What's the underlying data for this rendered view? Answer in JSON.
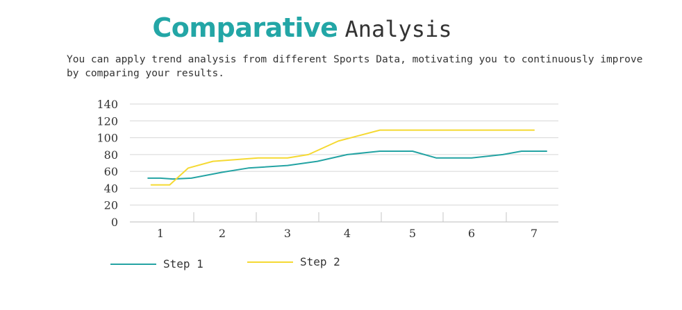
{
  "title": {
    "bold": "Comparative",
    "light": "Analysis"
  },
  "subtitle": "You can apply trend analysis from different Sports Data, motivating you to continuously improve by comparing your results.",
  "chart_data": {
    "type": "line",
    "title": "",
    "xlabel": "",
    "ylabel": "",
    "categories": [
      "1",
      "2",
      "3",
      "4",
      "5",
      "6",
      "7"
    ],
    "ylim": [
      0,
      140
    ],
    "yticks": [
      0,
      20,
      40,
      60,
      80,
      100,
      120,
      140
    ],
    "grid": true,
    "legend": "bottom-left",
    "series": [
      {
        "name": "Step 1",
        "color": "#23a3a3",
        "x": [
          0.8,
          1.0,
          1.2,
          1.5,
          2.0,
          2.4,
          3.0,
          3.5,
          4.0,
          4.5,
          5.0,
          5.4,
          6.0,
          6.5,
          6.8,
          7.2
        ],
        "values": [
          52,
          52,
          51,
          52,
          59,
          64,
          67,
          72,
          80,
          84,
          84,
          76,
          76,
          80,
          84,
          84
        ]
      },
      {
        "name": "Step 2",
        "color": "#f5d932",
        "x": [
          0.85,
          1.15,
          1.45,
          1.85,
          2.55,
          3.0,
          3.35,
          3.85,
          4.5,
          5.0,
          6.0,
          7.0
        ],
        "values": [
          44,
          44,
          64,
          72,
          76,
          76,
          80,
          96,
          109,
          109,
          109,
          109
        ]
      }
    ]
  }
}
